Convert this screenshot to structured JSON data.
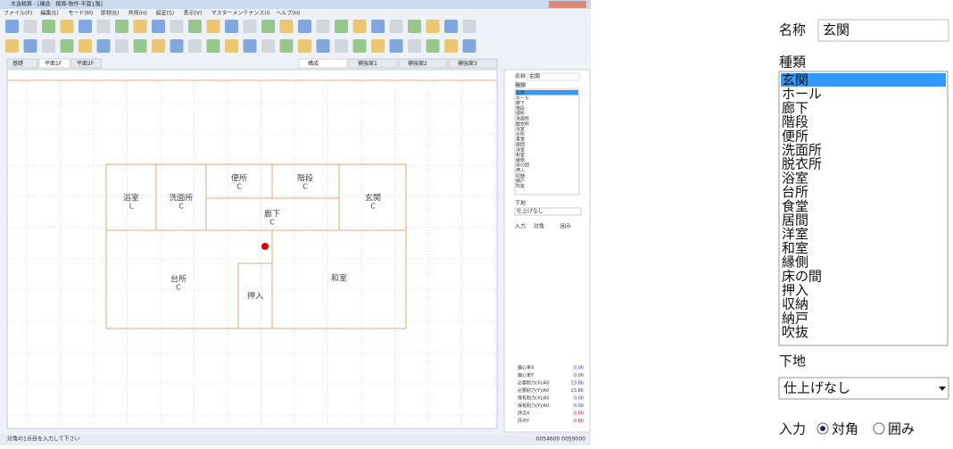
{
  "window": {
    "title": "木造積算 - [構造　積算-物件-平面1階]",
    "menu": [
      "ファイル(F)",
      "編集(E)",
      "モード(M)",
      "部材(B)",
      "共用(H)",
      "設定(S)",
      "表示(V)",
      "マスターメンテナンス(I)",
      "ヘルプ(H)"
    ],
    "tabs": [
      "基礎",
      "平面1F",
      "平面2F"
    ],
    "plan_tabs": [
      "構成",
      "補強案1",
      "補強案2",
      "補強案3"
    ]
  },
  "rooms": [
    {
      "label": "浴室",
      "code": "L"
    },
    {
      "label": "洗面所",
      "code": "C"
    },
    {
      "label": "便所",
      "code": "C"
    },
    {
      "label": "階段",
      "code": "C"
    },
    {
      "label": "玄関",
      "code": "C"
    },
    {
      "label": "廊下",
      "code": "C"
    },
    {
      "label": "台所",
      "code": "C"
    },
    {
      "label": "押入"
    },
    {
      "label": "和室"
    }
  ],
  "panel": {
    "name_label": "名称",
    "name_value": "玄関",
    "kind_label": "種類",
    "kinds": [
      "玄関",
      "ホール",
      "廊下",
      "階段",
      "便所",
      "洗面所",
      "脱衣所",
      "浴室",
      "台所",
      "食堂",
      "居間",
      "洋室",
      "和室",
      "縁側",
      "床の間",
      "押入",
      "収納",
      "納戸",
      "吹抜"
    ],
    "floor_label": "下地",
    "floor_value": "仕上げなし",
    "input_label": "入力",
    "radio_1": "対角",
    "radio_2": "囲み"
  },
  "stats": [
    {
      "label": "偏心率X",
      "value": "0.00"
    },
    {
      "label": "偏心率Y",
      "value": "0.00"
    },
    {
      "label": "必要耐力(X)/A0",
      "value": "23.86"
    },
    {
      "label": "必要耐力(Y)/A0",
      "value": "23.86"
    },
    {
      "label": "保有耐力(X)/A0",
      "value": "0.00"
    },
    {
      "label": "保有耐力(Y)/A0",
      "value": "0.00"
    },
    {
      "label": "評点X",
      "value": "0.00"
    },
    {
      "label": "評点Y",
      "value": "0.00"
    }
  ],
  "status": {
    "message": "対角の1点目を入力して下さい",
    "coords": "0054600 0059000"
  }
}
